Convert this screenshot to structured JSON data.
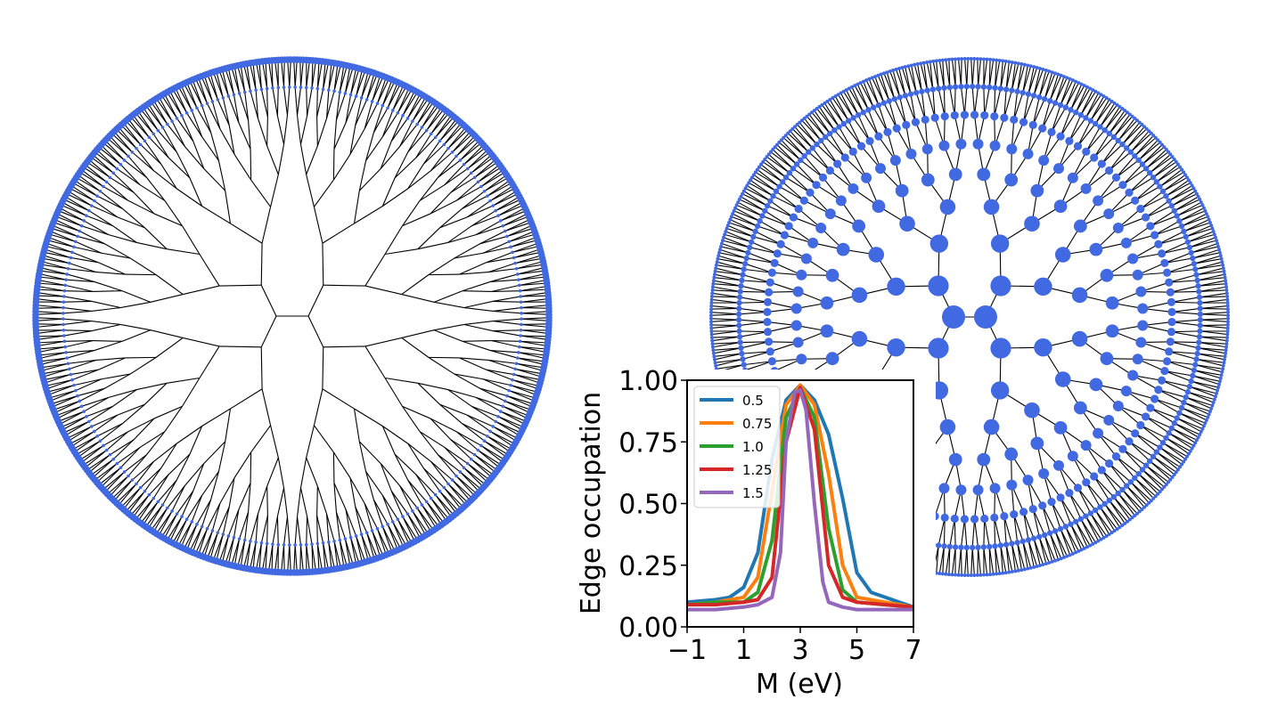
{
  "figure": {
    "panels": [
      {
        "name": "left-tree",
        "description_shown": false
      },
      {
        "name": "right-tree",
        "description_shown": false
      }
    ],
    "colors": {
      "node": "#4169e1",
      "edge": "#000000",
      "background": "#ffffff"
    }
  },
  "chart_data": {
    "type": "line",
    "title": "",
    "xlabel": "M (eV)",
    "ylabel": "Edge occupation",
    "xlim": [
      -1,
      7
    ],
    "ylim": [
      0,
      1
    ],
    "xticks": [
      -1,
      1,
      3,
      5,
      7
    ],
    "xtick_labels": [
      "−1",
      "1",
      "3",
      "5",
      "7"
    ],
    "yticks": [
      0,
      0.25,
      0.5,
      0.75,
      1.0
    ],
    "ytick_labels": [
      "0.00",
      "0.25",
      "0.50",
      "0.75",
      "1.00"
    ],
    "grid": false,
    "legend_position": "top-left",
    "series": [
      {
        "name": "0.5",
        "color": "#1f77b4",
        "x": [
          -1,
          0,
          0.5,
          1,
          1.5,
          2,
          2.5,
          3,
          3.5,
          4,
          4.5,
          5,
          5.5,
          6,
          7
        ],
        "y": [
          0.1,
          0.11,
          0.12,
          0.16,
          0.3,
          0.68,
          0.92,
          0.98,
          0.92,
          0.78,
          0.52,
          0.22,
          0.14,
          0.12,
          0.08
        ]
      },
      {
        "name": "0.75",
        "color": "#ff7f0e",
        "x": [
          -1,
          0,
          1,
          1.5,
          2,
          2.5,
          3,
          3.5,
          4,
          4.5,
          5,
          6,
          7
        ],
        "y": [
          0.09,
          0.1,
          0.12,
          0.2,
          0.55,
          0.9,
          0.98,
          0.9,
          0.62,
          0.25,
          0.12,
          0.1,
          0.08
        ]
      },
      {
        "name": "1.0",
        "color": "#2ca02c",
        "x": [
          -1,
          0,
          1,
          1.5,
          2,
          2.5,
          3,
          3.5,
          4,
          4.5,
          5,
          6,
          7
        ],
        "y": [
          0.09,
          0.1,
          0.1,
          0.14,
          0.35,
          0.85,
          0.97,
          0.85,
          0.4,
          0.15,
          0.1,
          0.09,
          0.08
        ]
      },
      {
        "name": "1.25",
        "color": "#d62728",
        "x": [
          -1,
          0,
          1,
          1.5,
          2,
          2.5,
          3,
          3.5,
          4,
          4.5,
          5,
          6,
          7
        ],
        "y": [
          0.09,
          0.09,
          0.1,
          0.11,
          0.2,
          0.75,
          0.97,
          0.8,
          0.25,
          0.12,
          0.1,
          0.09,
          0.08
        ]
      },
      {
        "name": "1.5",
        "color": "#9467bd",
        "x": [
          -1,
          0,
          1,
          1.5,
          2,
          2.3,
          2.5,
          2.8,
          3,
          3.2,
          3.5,
          3.8,
          4,
          4.5,
          5,
          6,
          7
        ],
        "y": [
          0.07,
          0.07,
          0.08,
          0.09,
          0.12,
          0.3,
          0.75,
          0.95,
          0.96,
          0.88,
          0.5,
          0.18,
          0.1,
          0.08,
          0.07,
          0.07,
          0.07
        ]
      }
    ]
  }
}
